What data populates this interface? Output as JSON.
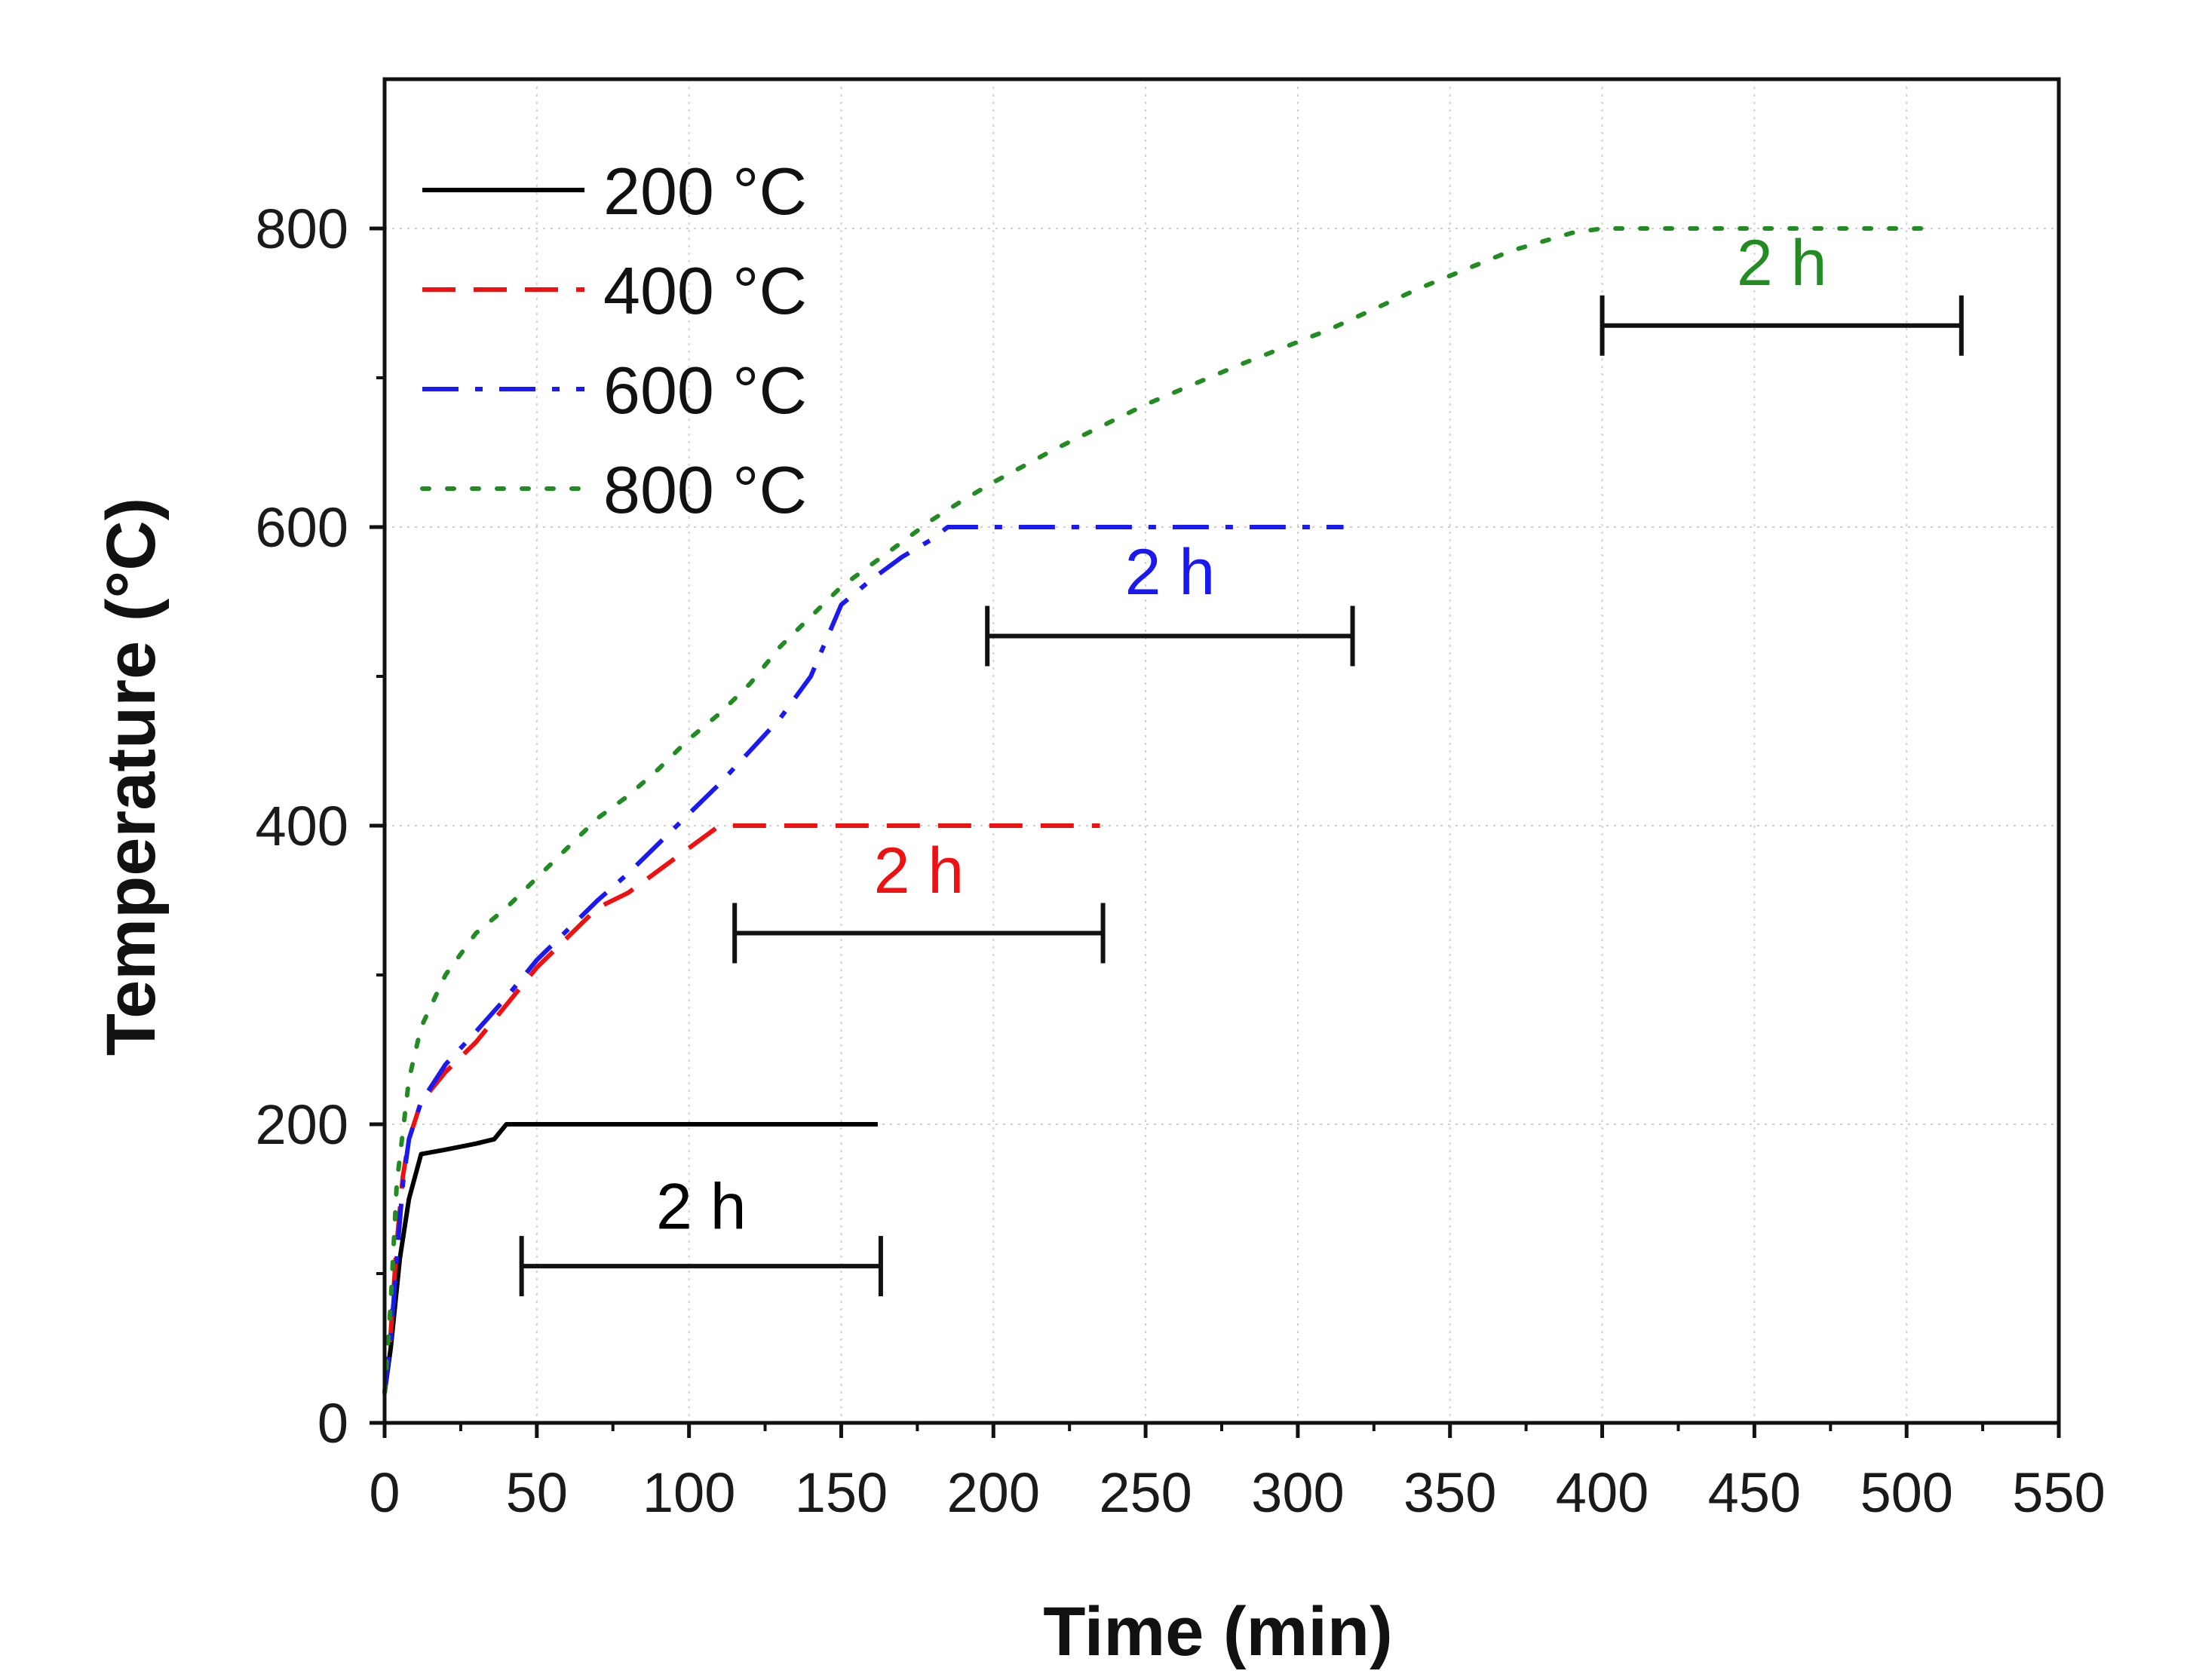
{
  "chart_data": {
    "type": "line",
    "title": "",
    "xlabel": "Time (min)",
    "ylabel": "Temperature (°C)",
    "xlim": [
      0,
      550
    ],
    "ylim": [
      0,
      900
    ],
    "xticks": [
      0,
      50,
      100,
      150,
      200,
      250,
      300,
      350,
      400,
      450,
      500,
      550
    ],
    "yticks": [
      0,
      200,
      400,
      600,
      800
    ],
    "grid": true,
    "legend_position": "top-left",
    "series": [
      {
        "name": "200 °C",
        "label": "200 °C",
        "color": "#000000",
        "style": "solid",
        "x": [
          0,
          2,
          5,
          8,
          12,
          20,
          30,
          36,
          40,
          45,
          60,
          100,
          130,
          162
        ],
        "y": [
          20,
          50,
          110,
          150,
          180,
          183,
          187,
          190,
          200,
          200,
          200,
          200,
          200,
          200
        ]
      },
      {
        "name": "400 °C",
        "label": "400 °C",
        "color": "#ee1111",
        "style": "dashed",
        "x": [
          0,
          2,
          4,
          6,
          8,
          12,
          20,
          30,
          40,
          50,
          60,
          70,
          80,
          90,
          100,
          110,
          120,
          150,
          200,
          235
        ],
        "y": [
          20,
          60,
          120,
          165,
          190,
          215,
          235,
          255,
          280,
          305,
          325,
          345,
          355,
          370,
          385,
          400,
          400,
          400,
          400,
          400
        ]
      },
      {
        "name": "600 °C",
        "label": "600 °C",
        "color": "#1a1aee",
        "style": "dashdot",
        "x": [
          0,
          2,
          4,
          6,
          8,
          12,
          20,
          30,
          40,
          50,
          60,
          70,
          80,
          90,
          100,
          110,
          120,
          130,
          140,
          150,
          160,
          170,
          180,
          185,
          200,
          250,
          315
        ],
        "y": [
          20,
          55,
          110,
          160,
          190,
          215,
          240,
          262,
          285,
          310,
          330,
          350,
          368,
          388,
          408,
          428,
          450,
          472,
          500,
          548,
          565,
          580,
          592,
          600,
          600,
          600,
          600
        ]
      },
      {
        "name": "800 °C",
        "label": "800 °C",
        "color": "#228b22",
        "style": "dotted",
        "x": [
          0,
          2,
          4,
          8,
          12,
          20,
          30,
          40,
          50,
          60,
          70,
          80,
          90,
          100,
          110,
          120,
          130,
          140,
          150,
          160,
          170,
          180,
          190,
          200,
          220,
          250,
          280,
          310,
          340,
          370,
          390,
          400,
          420,
          450,
          480,
          510
        ],
        "y": [
          20,
          80,
          160,
          230,
          265,
          300,
          328,
          345,
          365,
          385,
          405,
          420,
          438,
          458,
          475,
          495,
          520,
          540,
          560,
          575,
          590,
          605,
          618,
          630,
          652,
          682,
          708,
          732,
          760,
          785,
          797,
          800,
          800,
          800,
          800,
          800
        ]
      }
    ],
    "annotations": [
      {
        "label": "2 h",
        "color": "#000000",
        "bar_start": 45,
        "bar_end": 163,
        "bar_y": 105,
        "label_y": 130
      },
      {
        "label": "2 h",
        "color": "#ee1111",
        "bar_start": 115,
        "bar_end": 236,
        "bar_y": 328,
        "label_y": 355
      },
      {
        "label": "2 h",
        "color": "#1a1aee",
        "bar_start": 198,
        "bar_end": 318,
        "bar_y": 527,
        "label_y": 555
      },
      {
        "label": "2 h",
        "color": "#228b22",
        "bar_start": 400,
        "bar_end": 518,
        "bar_y": 735,
        "label_y": 762
      }
    ]
  }
}
